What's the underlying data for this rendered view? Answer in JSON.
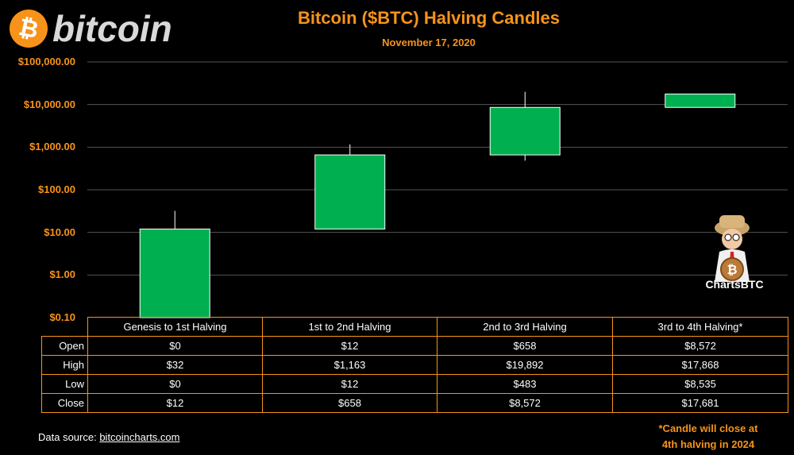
{
  "logo": {
    "symbol": "₿",
    "wordmark": "bitcoin"
  },
  "title": "Bitcoin ($BTC) Halving Candles",
  "subtitle": "November 17, 2020",
  "chart_data": {
    "type": "candlestick",
    "y_scale": "log",
    "ylim": [
      0.1,
      100000
    ],
    "y_ticks": [
      "$100,000.00",
      "$10,000.00",
      "$1,000.00",
      "$100.00",
      "$10.00",
      "$1.00",
      "$0.10"
    ],
    "y_tick_values": [
      100000,
      10000,
      1000,
      100,
      10,
      1,
      0.1
    ],
    "grid": true,
    "categories": [
      "Genesis to 1st Halving",
      "1st to 2nd Halving",
      "2nd to 3rd Halving",
      "3rd to 4th Halving*"
    ],
    "open": [
      0,
      12,
      658,
      8572
    ],
    "high": [
      32,
      1163,
      19892,
      17868
    ],
    "low": [
      0,
      12,
      483,
      8535
    ],
    "close": [
      12,
      658,
      8572,
      17681
    ],
    "candle_color": "#00b050",
    "wick_color": "#ffffff"
  },
  "table": {
    "row_labels": [
      "Open",
      "High",
      "Low",
      "Close"
    ],
    "rows": [
      [
        "$0",
        "$12",
        "$658",
        "$8,572"
      ],
      [
        "$32",
        "$1,163",
        "$19,892",
        "$17,868"
      ],
      [
        "$0",
        "$12",
        "$483",
        "$8,535"
      ],
      [
        "$12",
        "$658",
        "$8,572",
        "$17,681"
      ]
    ]
  },
  "source": {
    "prefix": "Data source: ",
    "link": "bitcoincharts.com"
  },
  "footnote": {
    "line1": "*Candle will close at",
    "line2": "4th halving in 2024"
  },
  "mascot_label": "ChartsBTC",
  "colors": {
    "accent": "#f7931a",
    "background": "#000000",
    "grid": "#555555"
  }
}
